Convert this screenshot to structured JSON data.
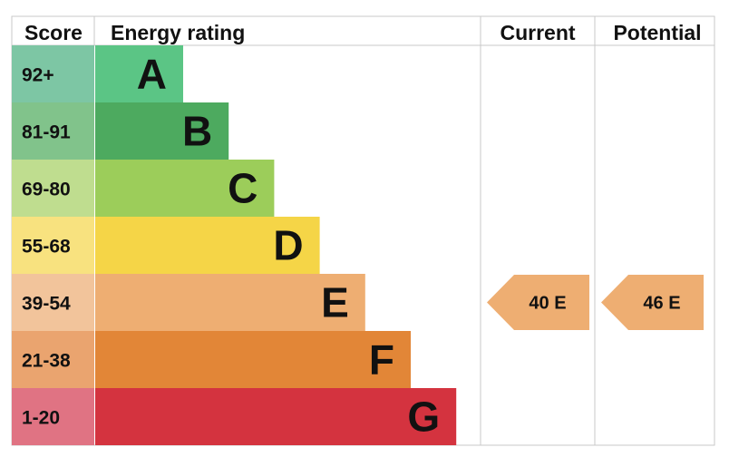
{
  "chart_data": {
    "type": "bar",
    "headers": {
      "score": "Score",
      "rating": "Energy rating",
      "current": "Current",
      "potential": "Potential"
    },
    "bands": [
      {
        "score": "92+",
        "letter": "A",
        "color": "#5bc585",
        "score_color": "#7dc6a4"
      },
      {
        "score": "81-91",
        "letter": "B",
        "color": "#4daa5f",
        "score_color": "#81c38b"
      },
      {
        "score": "69-80",
        "letter": "C",
        "color": "#9ccd5a",
        "score_color": "#bfdd8f"
      },
      {
        "score": "55-68",
        "letter": "D",
        "color": "#f5d547",
        "score_color": "#f8e27f"
      },
      {
        "score": "39-54",
        "letter": "E",
        "color": "#eeae72",
        "score_color": "#f2c49b"
      },
      {
        "score": "21-38",
        "letter": "F",
        "color": "#e28637",
        "score_color": "#eaa46f"
      },
      {
        "score": "1-20",
        "letter": "G",
        "color": "#d4333f",
        "score_color": "#e07383"
      }
    ],
    "current": {
      "value": 40,
      "band": "E",
      "color": "#eeae72"
    },
    "potential": {
      "value": 46,
      "band": "E",
      "color": "#eeae72"
    }
  }
}
